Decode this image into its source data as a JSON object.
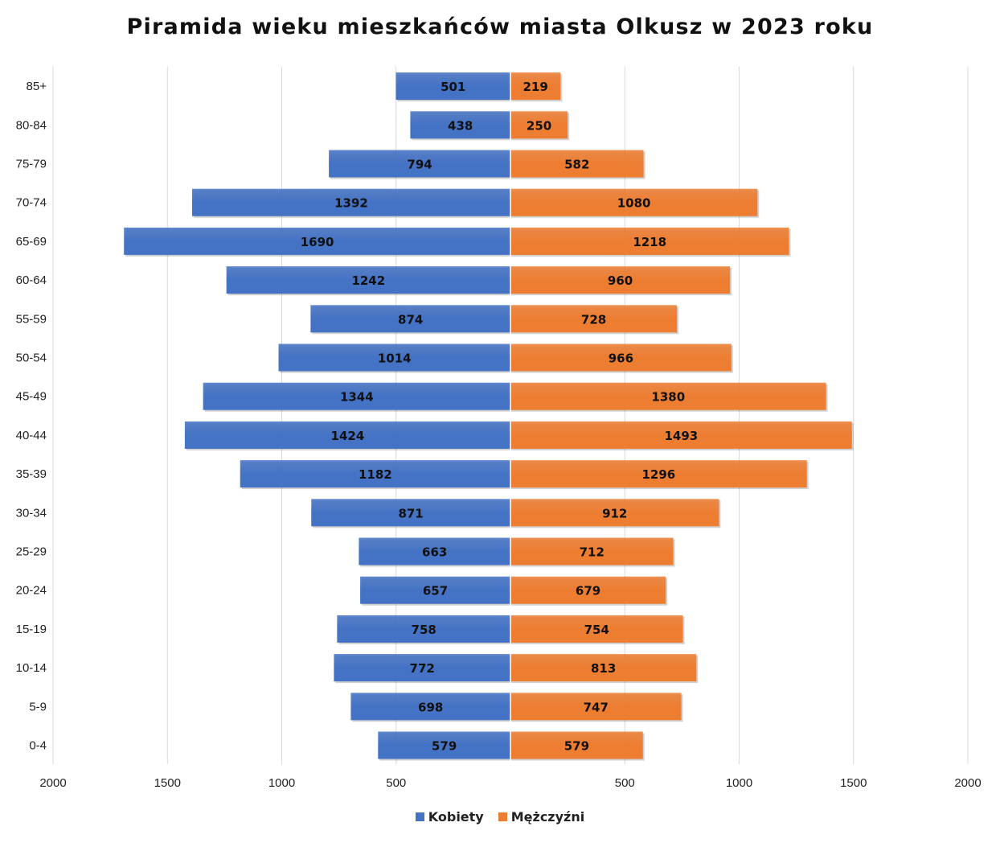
{
  "chart_data": {
    "type": "bar",
    "orientation": "horizontal",
    "title": "Piramida wieku mieszkańców miasta Olkusz w 2023 roku",
    "categories": [
      "85+",
      "80-84",
      "75-79",
      "70-74",
      "65-69",
      "60-64",
      "55-59",
      "50-54",
      "45-49",
      "40-44",
      "35-39",
      "30-34",
      "25-29",
      "20-24",
      "15-19",
      "10-14",
      "5-9",
      "0-4"
    ],
    "series": [
      {
        "name": "Kobiety",
        "color": "#4472C4",
        "side": "left",
        "values": [
          501,
          438,
          794,
          1392,
          1690,
          1242,
          874,
          1014,
          1344,
          1424,
          1182,
          871,
          663,
          657,
          758,
          772,
          698,
          579
        ]
      },
      {
        "name": "Mężczyźni",
        "color": "#ED7D31",
        "side": "right",
        "values": [
          219,
          250,
          582,
          1080,
          1218,
          960,
          728,
          966,
          1380,
          1493,
          1296,
          912,
          712,
          679,
          754,
          813,
          747,
          579
        ]
      }
    ],
    "xlim": [
      -2000,
      2000
    ],
    "x_tick_labels": [
      "2000",
      "1500",
      "1000",
      "500",
      "",
      "500",
      "1000",
      "1500",
      "2000"
    ],
    "grid": "vertical",
    "legend_position": "bottom"
  }
}
